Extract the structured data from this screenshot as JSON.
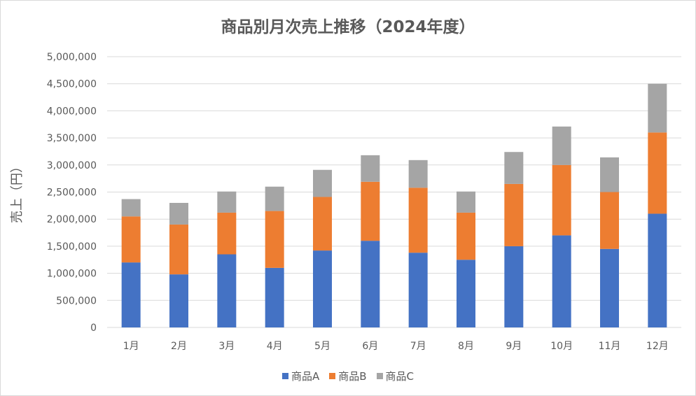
{
  "chart_data": {
    "type": "bar",
    "stacked": true,
    "title": "商品別月次売上推移（2024年度）",
    "xlabel": "",
    "ylabel": "売上（円）",
    "ylim": [
      0,
      5000000
    ],
    "yticks": [
      0,
      500000,
      1000000,
      1500000,
      2000000,
      2500000,
      3000000,
      3500000,
      4000000,
      4500000,
      5000000
    ],
    "ytick_labels": [
      "0",
      "500,000",
      "1,000,000",
      "1,500,000",
      "2,000,000",
      "2,500,000",
      "3,000,000",
      "3,500,000",
      "4,000,000",
      "4,500,000",
      "5,000,000"
    ],
    "grid": true,
    "legend_position": "bottom",
    "categories": [
      "1月",
      "2月",
      "3月",
      "4月",
      "5月",
      "6月",
      "7月",
      "8月",
      "9月",
      "10月",
      "11月",
      "12月"
    ],
    "series": [
      {
        "name": "商品A",
        "color": "#4472C4",
        "values": [
          1200000,
          980000,
          1350000,
          1100000,
          1420000,
          1600000,
          1380000,
          1250000,
          1500000,
          1700000,
          1450000,
          2100000
        ]
      },
      {
        "name": "商品B",
        "color": "#ED7D31",
        "values": [
          850000,
          920000,
          770000,
          1050000,
          990000,
          1090000,
          1200000,
          870000,
          1150000,
          1300000,
          1050000,
          1500000
        ]
      },
      {
        "name": "商品C",
        "color": "#A5A5A5",
        "values": [
          320000,
          400000,
          390000,
          450000,
          500000,
          490000,
          510000,
          390000,
          590000,
          710000,
          640000,
          900000
        ]
      }
    ]
  }
}
